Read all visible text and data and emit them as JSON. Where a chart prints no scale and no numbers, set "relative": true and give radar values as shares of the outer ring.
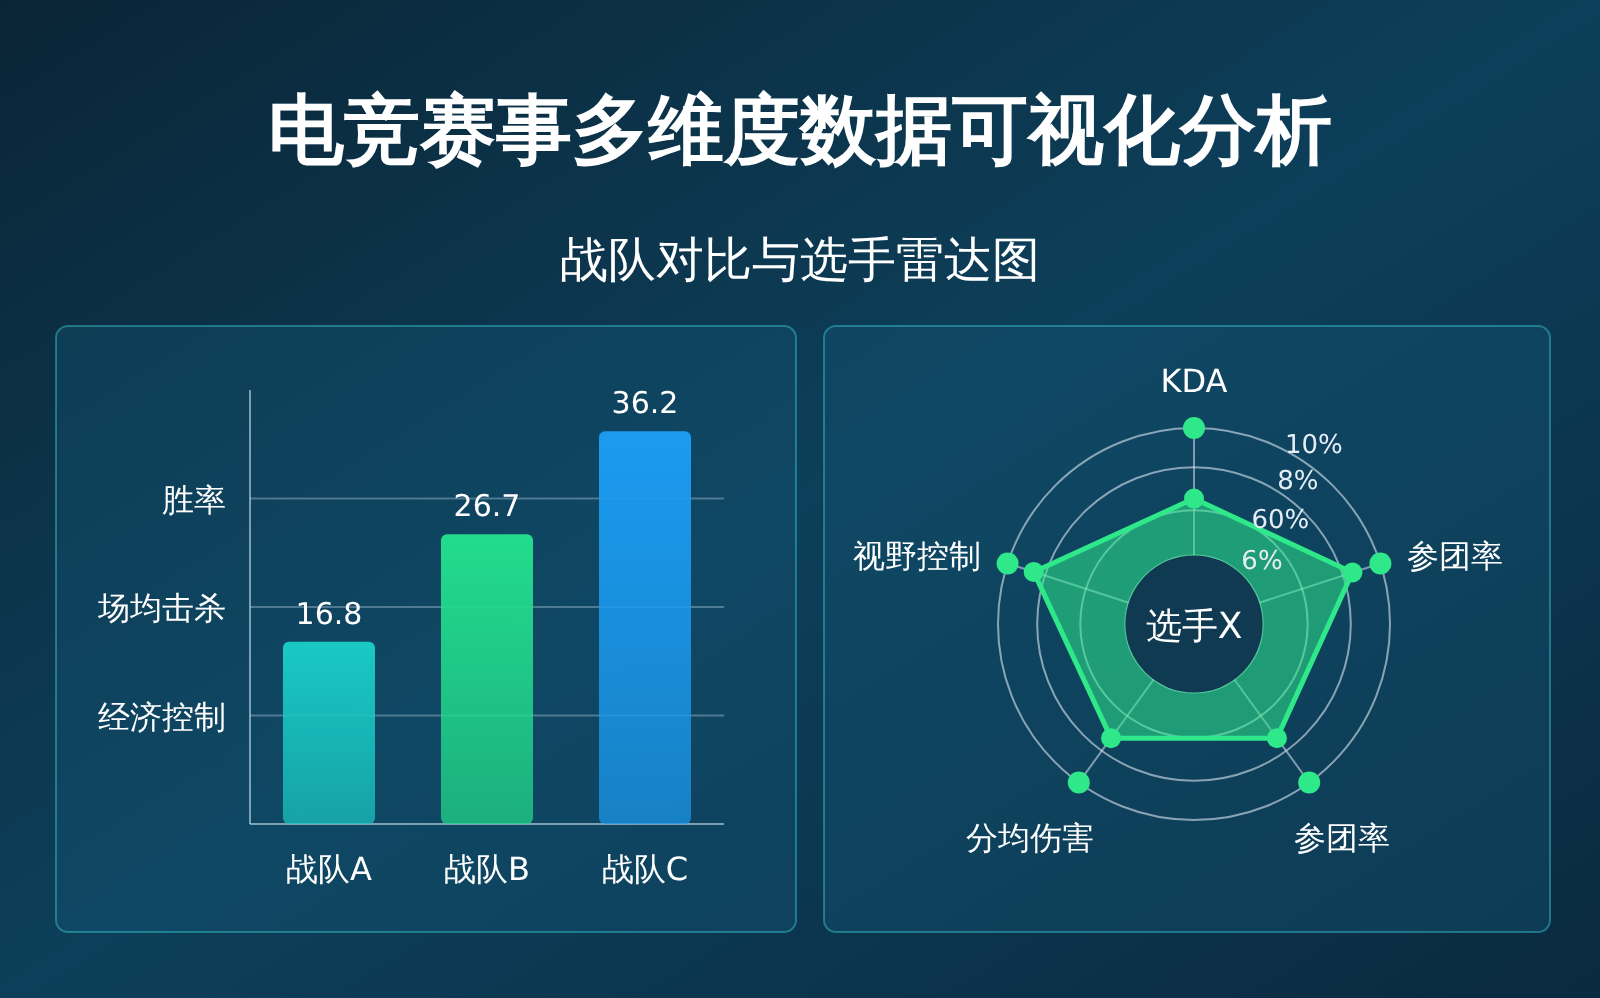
{
  "chart_data": [
    {
      "type": "bar",
      "title": "电竞赛事多维度数据可视化分析",
      "subtitle": "战队对比与选手雷达图",
      "categories": [
        "战队A",
        "战队B",
        "战队C"
      ],
      "values": [
        16.8,
        26.7,
        36.2
      ],
      "colors": [
        "#19c9c4",
        "#22dc8c",
        "#1b9bf0"
      ],
      "ylim": [
        0,
        40
      ],
      "ref_lines": [
        {
          "axis": "y",
          "value": 10,
          "label": "经济控制"
        },
        {
          "axis": "y",
          "value": 20,
          "label": "场均击杀"
        },
        {
          "axis": "y",
          "value": 30,
          "label": "胜率"
        }
      ],
      "data_labels": true
    },
    {
      "type": "radar",
      "categories": [
        "KDA",
        "参团率",
        "参团率",
        "分均伤害",
        "视野控制"
      ],
      "relative": true,
      "series": [
        {
          "color": "#2ee88a",
          "values": [
            0.64,
            0.85,
            0.72,
            0.72,
            0.86
          ]
        }
      ],
      "marker": "circle",
      "annotations": [
        "6%",
        "60%",
        "8%",
        "10%",
        "选手X"
      ]
    }
  ]
}
